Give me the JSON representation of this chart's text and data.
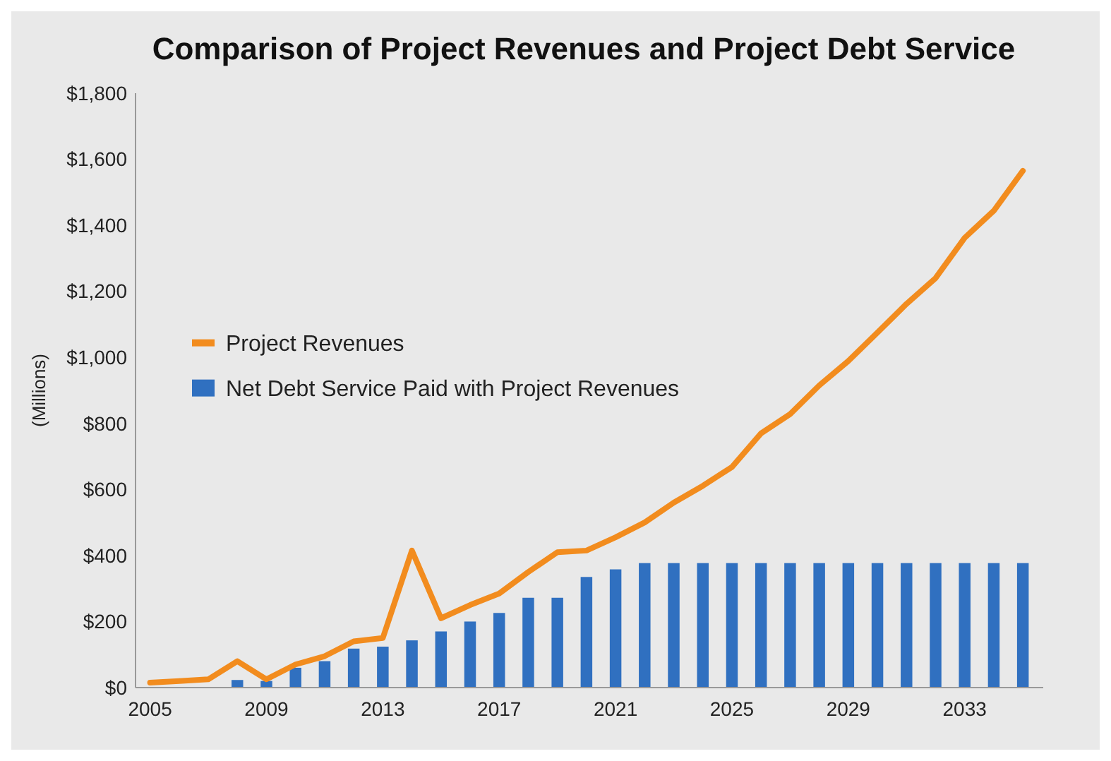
{
  "chart_data": {
    "type": "bar",
    "title": "Comparison of Project Revenues and Project Debt Service",
    "ylabel": "(Millions)",
    "x": [
      2005,
      2006,
      2007,
      2008,
      2009,
      2010,
      2011,
      2012,
      2013,
      2014,
      2015,
      2016,
      2017,
      2018,
      2019,
      2020,
      2021,
      2022,
      2023,
      2024,
      2025,
      2026,
      2027,
      2028,
      2029,
      2030,
      2031,
      2032,
      2033,
      2034,
      2035
    ],
    "series": [
      {
        "name": "Project Revenues",
        "type": "line",
        "color": "#f28c1e",
        "values": [
          15,
          20,
          25,
          80,
          25,
          70,
          95,
          140,
          150,
          415,
          210,
          250,
          285,
          350,
          410,
          415,
          455,
          500,
          560,
          611,
          668,
          770,
          828,
          915,
          989,
          1075,
          1162,
          1240,
          1362,
          1444,
          1565
        ]
      },
      {
        "name": "Net Debt Service Paid with Project Revenues",
        "color": "#3070c0",
        "values": [
          0,
          0,
          null,
          23,
          20,
          60,
          80,
          118,
          124,
          143,
          170,
          200,
          226,
          272,
          272,
          335,
          358,
          377,
          377,
          377,
          377,
          377,
          377,
          377,
          377,
          377,
          377,
          377,
          377,
          377,
          377
        ]
      }
    ],
    "xlim": [
      2004.5,
      2035.7
    ],
    "xticks": [
      2005,
      2009,
      2013,
      2017,
      2021,
      2025,
      2029,
      2033
    ],
    "ylim": [
      0,
      1800
    ],
    "yticks": [
      {
        "value": 0,
        "label": "$0"
      },
      {
        "value": 200,
        "label": "$200"
      },
      {
        "value": 400,
        "label": "$400"
      },
      {
        "value": 600,
        "label": "$600"
      },
      {
        "value": 800,
        "label": "$800"
      },
      {
        "value": 1000,
        "label": "$1,000"
      },
      {
        "value": 1200,
        "label": "$1,200"
      },
      {
        "value": 1400,
        "label": "$1,400"
      },
      {
        "value": 1600,
        "label": "$1,600"
      },
      {
        "value": 1800,
        "label": "$1,800"
      }
    ],
    "legend": "left",
    "grid": false
  }
}
